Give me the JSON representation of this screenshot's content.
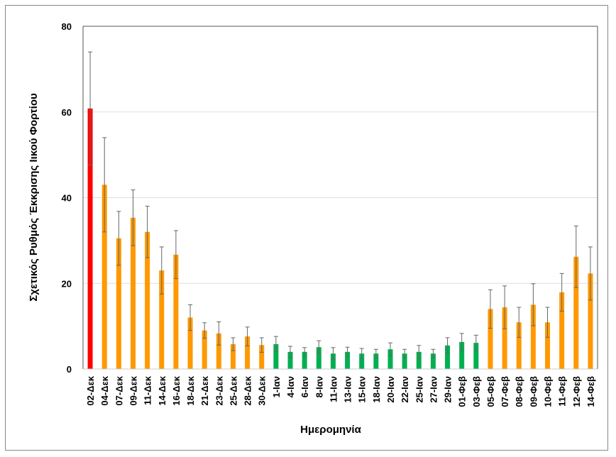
{
  "chart_data": {
    "type": "bar",
    "title": "",
    "xlabel": "Ημερομηνία",
    "ylabel": "Σχετικός Ρυθμός Έκκρισης Ιικού Φορτίου",
    "ylim": [
      0,
      80
    ],
    "yticks": [
      0,
      20,
      40,
      60,
      80
    ],
    "grid": true,
    "colors": {
      "red": "#FF0000",
      "orange": "#FF9900",
      "green": "#00B050"
    },
    "categories": [
      "02-Δεκ",
      "04-Δεκ",
      "07-Δεκ",
      "09-Δεκ",
      "11-Δεκ",
      "14-Δεκ",
      "16-Δεκ",
      "18-Δεκ",
      "21-Δεκ",
      "23-Δεκ",
      "25-Δεκ",
      "28-Δεκ",
      "30-Δεκ",
      "1-Ιαν",
      "4-Ιαν",
      "6-Ιαν",
      "8-Ιαν",
      "11-Ιαν",
      "13-Ιαν",
      "15-Ιαν",
      "18-Ιαν",
      "20-Ιαν",
      "22-Ιαν",
      "25-Ιαν",
      "27-Ιαν",
      "29-Ιαν",
      "01-Φεβ",
      "03-Φεβ",
      "05-Φεβ",
      "07-Φεβ",
      "08-Φεβ",
      "09-Φεβ",
      "10-Φεβ",
      "11-Φεβ",
      "12-Φεβ",
      "14-Φεβ"
    ],
    "values": [
      60.8,
      43,
      30.5,
      35.3,
      32,
      23,
      26.7,
      12,
      9,
      8.3,
      5.8,
      7.6,
      5.6,
      5.8,
      4,
      4,
      5.1,
      3.6,
      4,
      3.6,
      3.6,
      4.6,
      3.6,
      4,
      3.6,
      5.5,
      6.3,
      6.1,
      14,
      14.4,
      10.9,
      15,
      10.9,
      17.9,
      26.2,
      22.3
    ],
    "errors": [
      13.2,
      11,
      6.3,
      6.5,
      6,
      5.5,
      5.6,
      3,
      1.8,
      2.7,
      1.5,
      2.2,
      1.7,
      1.8,
      1.3,
      1,
      1.5,
      1.4,
      1.1,
      1.2,
      1,
      1.5,
      1,
      1.5,
      1,
      1.8,
      2,
      1.8,
      4.5,
      5,
      3.5,
      4.9,
      3.5,
      4.4,
      7.2,
      6.2
    ],
    "bar_colors": [
      "red",
      "orange",
      "orange",
      "orange",
      "orange",
      "orange",
      "orange",
      "orange",
      "orange",
      "orange",
      "orange",
      "orange",
      "orange",
      "green",
      "green",
      "green",
      "green",
      "green",
      "green",
      "green",
      "green",
      "green",
      "green",
      "green",
      "green",
      "green",
      "green",
      "green",
      "orange",
      "orange",
      "orange",
      "orange",
      "orange",
      "orange",
      "orange",
      "orange"
    ]
  }
}
